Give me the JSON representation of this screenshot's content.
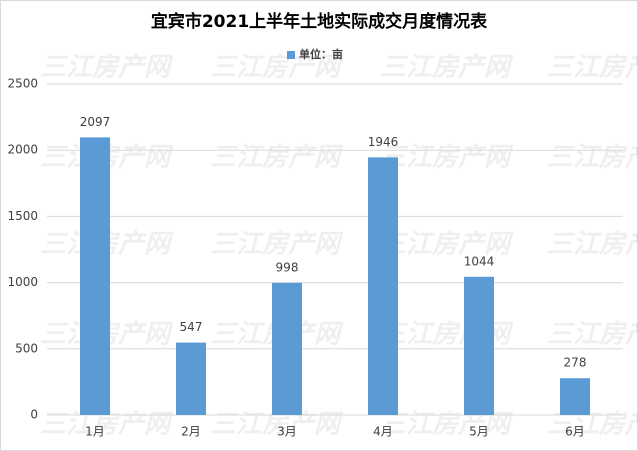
{
  "chart_data": {
    "type": "bar",
    "title": "宜宾市2021上半年土地实际成交月度情况表",
    "watermark": "三江房产网",
    "categories": [
      "1月",
      "2月",
      "3月",
      "4月",
      "5月",
      "6月"
    ],
    "series": [
      {
        "name": "单位：亩",
        "color": "#5b9bd5",
        "values": [
          2097,
          547,
          998,
          1946,
          1044,
          278
        ]
      }
    ],
    "ylim": [
      0,
      2500
    ],
    "yticks": [
      0,
      500,
      1000,
      1500,
      2000,
      2500
    ],
    "grid": true,
    "legend": "top",
    "data_labels": true
  }
}
